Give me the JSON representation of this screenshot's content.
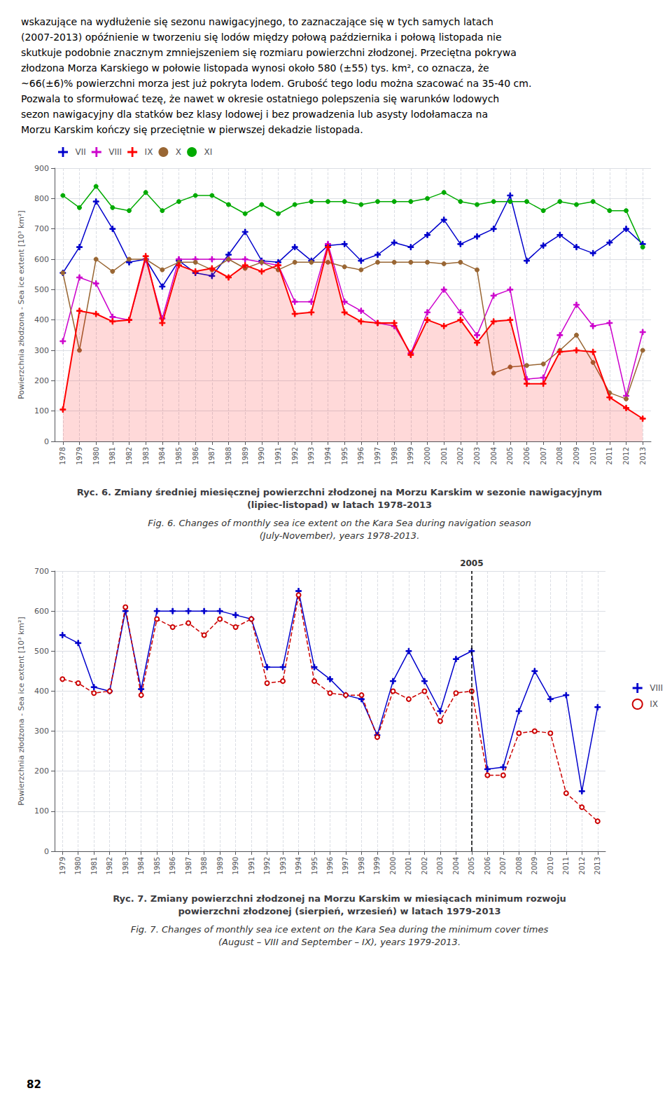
{
  "text_intro": [
    "wskazujące na wydłużenie się sezonu nawigacyjnego, to zaznaczające się w tych samych latach",
    "(2007-2013) opóźnienie w tworzeniu się lodów między połową października i połową listopada nie",
    "skutkuje podobnie znacznym zmniejszeniem się rozmiaru powierzchni złodzonej. Przeciętna pokrywa",
    "złodzona Morza Karskiego w połowie listopada wynosi około 580 (±55) tys. km², co oznacza, że",
    "~66(±6)% powierzchni morza jest już pokryta lodem. Grubość tego lodu można szacować na 35-40 cm.",
    "Pozwala to sformułować tezę, że nawet w okresie ostatniego polepszenia się warunków lodowych",
    "sezon nawigacyjny dla statków bez klasy lodowej i bez prowadzenia lub asysty lodołamacza na",
    "Morzu Karskim kończy się przeciętnie w pierwszej dekadzie listopada."
  ],
  "page_number": "82",
  "chart_data": [
    {
      "type": "line",
      "title": "Ryc. 6. Zmiany średniej miesięcznej powierzchni złodzonej na Morzu Karskim w sezonie nawigacyjnym\n(lipiec-listopad) w latach 1978-2013",
      "subtitle": "Fig. 6. Changes of monthly sea ice extent on the Kara Sea during navigation season\n(July-November), years 1978-2013.",
      "ylabel": "Powierzchnia złodzona - Sea ice extent [10³ km²]",
      "x": [
        1978,
        1979,
        1980,
        1981,
        1982,
        1983,
        1984,
        1985,
        1986,
        1987,
        1988,
        1989,
        1990,
        1991,
        1992,
        1993,
        1994,
        1995,
        1996,
        1997,
        1998,
        1999,
        2000,
        2001,
        2002,
        2003,
        2004,
        2005,
        2006,
        2007,
        2008,
        2009,
        2010,
        2011,
        2012,
        2013
      ],
      "xlim": [
        1977.5,
        2013.5
      ],
      "xticks": [
        1978,
        1979,
        1980,
        1981,
        1982,
        1983,
        1984,
        1985,
        1986,
        1987,
        1988,
        1989,
        1990,
        1991,
        1992,
        1993,
        1994,
        1995,
        1996,
        1997,
        1998,
        1999,
        2000,
        2001,
        2002,
        2003,
        2004,
        2005,
        2006,
        2007,
        2008,
        2009,
        2010,
        2011,
        2012,
        2013
      ],
      "ylim": [
        0,
        900
      ],
      "yticks": [
        0,
        100,
        200,
        300,
        400,
        500,
        600,
        700,
        800,
        900
      ],
      "grid": true,
      "legend": "upper left",
      "series": [
        {
          "name": "VII",
          "color": "#0000cc",
          "marker": "plus",
          "line_style": "solid",
          "values": [
            555,
            640,
            790,
            700,
            590,
            600,
            510,
            595,
            555,
            545,
            615,
            690,
            595,
            590,
            640,
            595,
            645,
            650,
            595,
            615,
            655,
            640,
            680,
            730,
            650,
            675,
            700,
            810,
            595,
            645,
            680,
            640,
            620,
            655,
            700,
            650
          ]
        },
        {
          "name": "VIII",
          "color": "#cc00cc",
          "marker": "plus",
          "line_style": "solid",
          "values": [
            330,
            540,
            520,
            410,
            400,
            600,
            405,
            600,
            600,
            600,
            600,
            600,
            590,
            580,
            460,
            460,
            650,
            460,
            430,
            390,
            380,
            290,
            425,
            500,
            425,
            350,
            480,
            500,
            205,
            210,
            350,
            450,
            380,
            390,
            150,
            360
          ]
        },
        {
          "name": "IX",
          "type": "area",
          "color": "#ff0000",
          "marker": "plus",
          "line_style": "solid",
          "values": [
            105,
            430,
            420,
            395,
            400,
            610,
            390,
            580,
            560,
            570,
            540,
            580,
            560,
            580,
            420,
            425,
            640,
            425,
            395,
            390,
            390,
            285,
            400,
            380,
            400,
            325,
            395,
            400,
            190,
            190,
            295,
            300,
            295,
            145,
            110,
            75
          ]
        },
        {
          "name": "X",
          "color": "#996633",
          "marker": "circle",
          "line_style": "solid",
          "values": [
            555,
            300,
            600,
            560,
            600,
            600,
            565,
            590,
            590,
            565,
            600,
            570,
            590,
            565,
            590,
            590,
            590,
            575,
            565,
            590,
            590,
            590,
            590,
            585,
            590,
            565,
            225,
            245,
            250,
            255,
            300,
            350,
            260,
            160,
            140,
            300
          ]
        },
        {
          "name": "XI",
          "color": "#00aa00",
          "marker": "circle",
          "line_style": "solid",
          "values": [
            810,
            770,
            840,
            770,
            760,
            820,
            760,
            790,
            810,
            810,
            780,
            750,
            780,
            750,
            780,
            790,
            790,
            790,
            780,
            790,
            790,
            790,
            800,
            820,
            790,
            780,
            790,
            790,
            790,
            760,
            790,
            780,
            790,
            760,
            760,
            640
          ]
        }
      ]
    },
    {
      "type": "line",
      "title": "Ryc. 7. Zmiany powierzchni złodzonej na Morzu Karskim w miesiącach minimum rozwoju\npowierzchni złodzonej (sierpień, wrzesień) w latach 1979-2013",
      "subtitle": "Fig. 7. Changes of monthly sea ice extent on the Kara Sea during the minimum cover times\n(August – VIII and September – IX), years 1979-2013.",
      "ylabel": "Powierzchnia złodzona - Sea ice extent [10³ km²]",
      "x": [
        1979,
        1980,
        1981,
        1982,
        1983,
        1984,
        1985,
        1986,
        1987,
        1988,
        1989,
        1990,
        1991,
        1992,
        1993,
        1994,
        1995,
        1996,
        1997,
        1998,
        1999,
        2000,
        2001,
        2002,
        2003,
        2004,
        2005,
        2006,
        2007,
        2008,
        2009,
        2010,
        2011,
        2012,
        2013
      ],
      "xlim": [
        1978.5,
        2013.5
      ],
      "xticks": [
        1979,
        1980,
        1981,
        1982,
        1983,
        1984,
        1985,
        1986,
        1987,
        1988,
        1989,
        1990,
        1991,
        1992,
        1993,
        1994,
        1995,
        1996,
        1997,
        1998,
        1999,
        2000,
        2001,
        2002,
        2003,
        2004,
        2005,
        2006,
        2007,
        2008,
        2009,
        2010,
        2011,
        2012,
        2013
      ],
      "ylim": [
        0,
        700
      ],
      "yticks": [
        0,
        100,
        200,
        300,
        400,
        500,
        600,
        700
      ],
      "grid": true,
      "legend": "center right",
      "annotations": [
        {
          "text": "2005",
          "x": 2005
        }
      ],
      "series": [
        {
          "name": "VIII",
          "color": "#0000cc",
          "marker": "plus",
          "line_style": "solid",
          "values": [
            540,
            520,
            410,
            400,
            600,
            405,
            600,
            600,
            600,
            600,
            600,
            590,
            580,
            460,
            460,
            650,
            460,
            430,
            390,
            380,
            290,
            425,
            500,
            425,
            350,
            480,
            500,
            205,
            210,
            350,
            450,
            380,
            390,
            150,
            360
          ]
        },
        {
          "name": "IX",
          "color": "#cc0000",
          "marker": "open circle",
          "line_style": "dashed",
          "values": [
            430,
            420,
            395,
            400,
            610,
            390,
            580,
            560,
            570,
            540,
            580,
            560,
            580,
            420,
            425,
            640,
            425,
            395,
            390,
            390,
            285,
            400,
            380,
            400,
            325,
            395,
            400,
            190,
            190,
            295,
            300,
            295,
            145,
            110,
            75
          ]
        }
      ]
    }
  ]
}
